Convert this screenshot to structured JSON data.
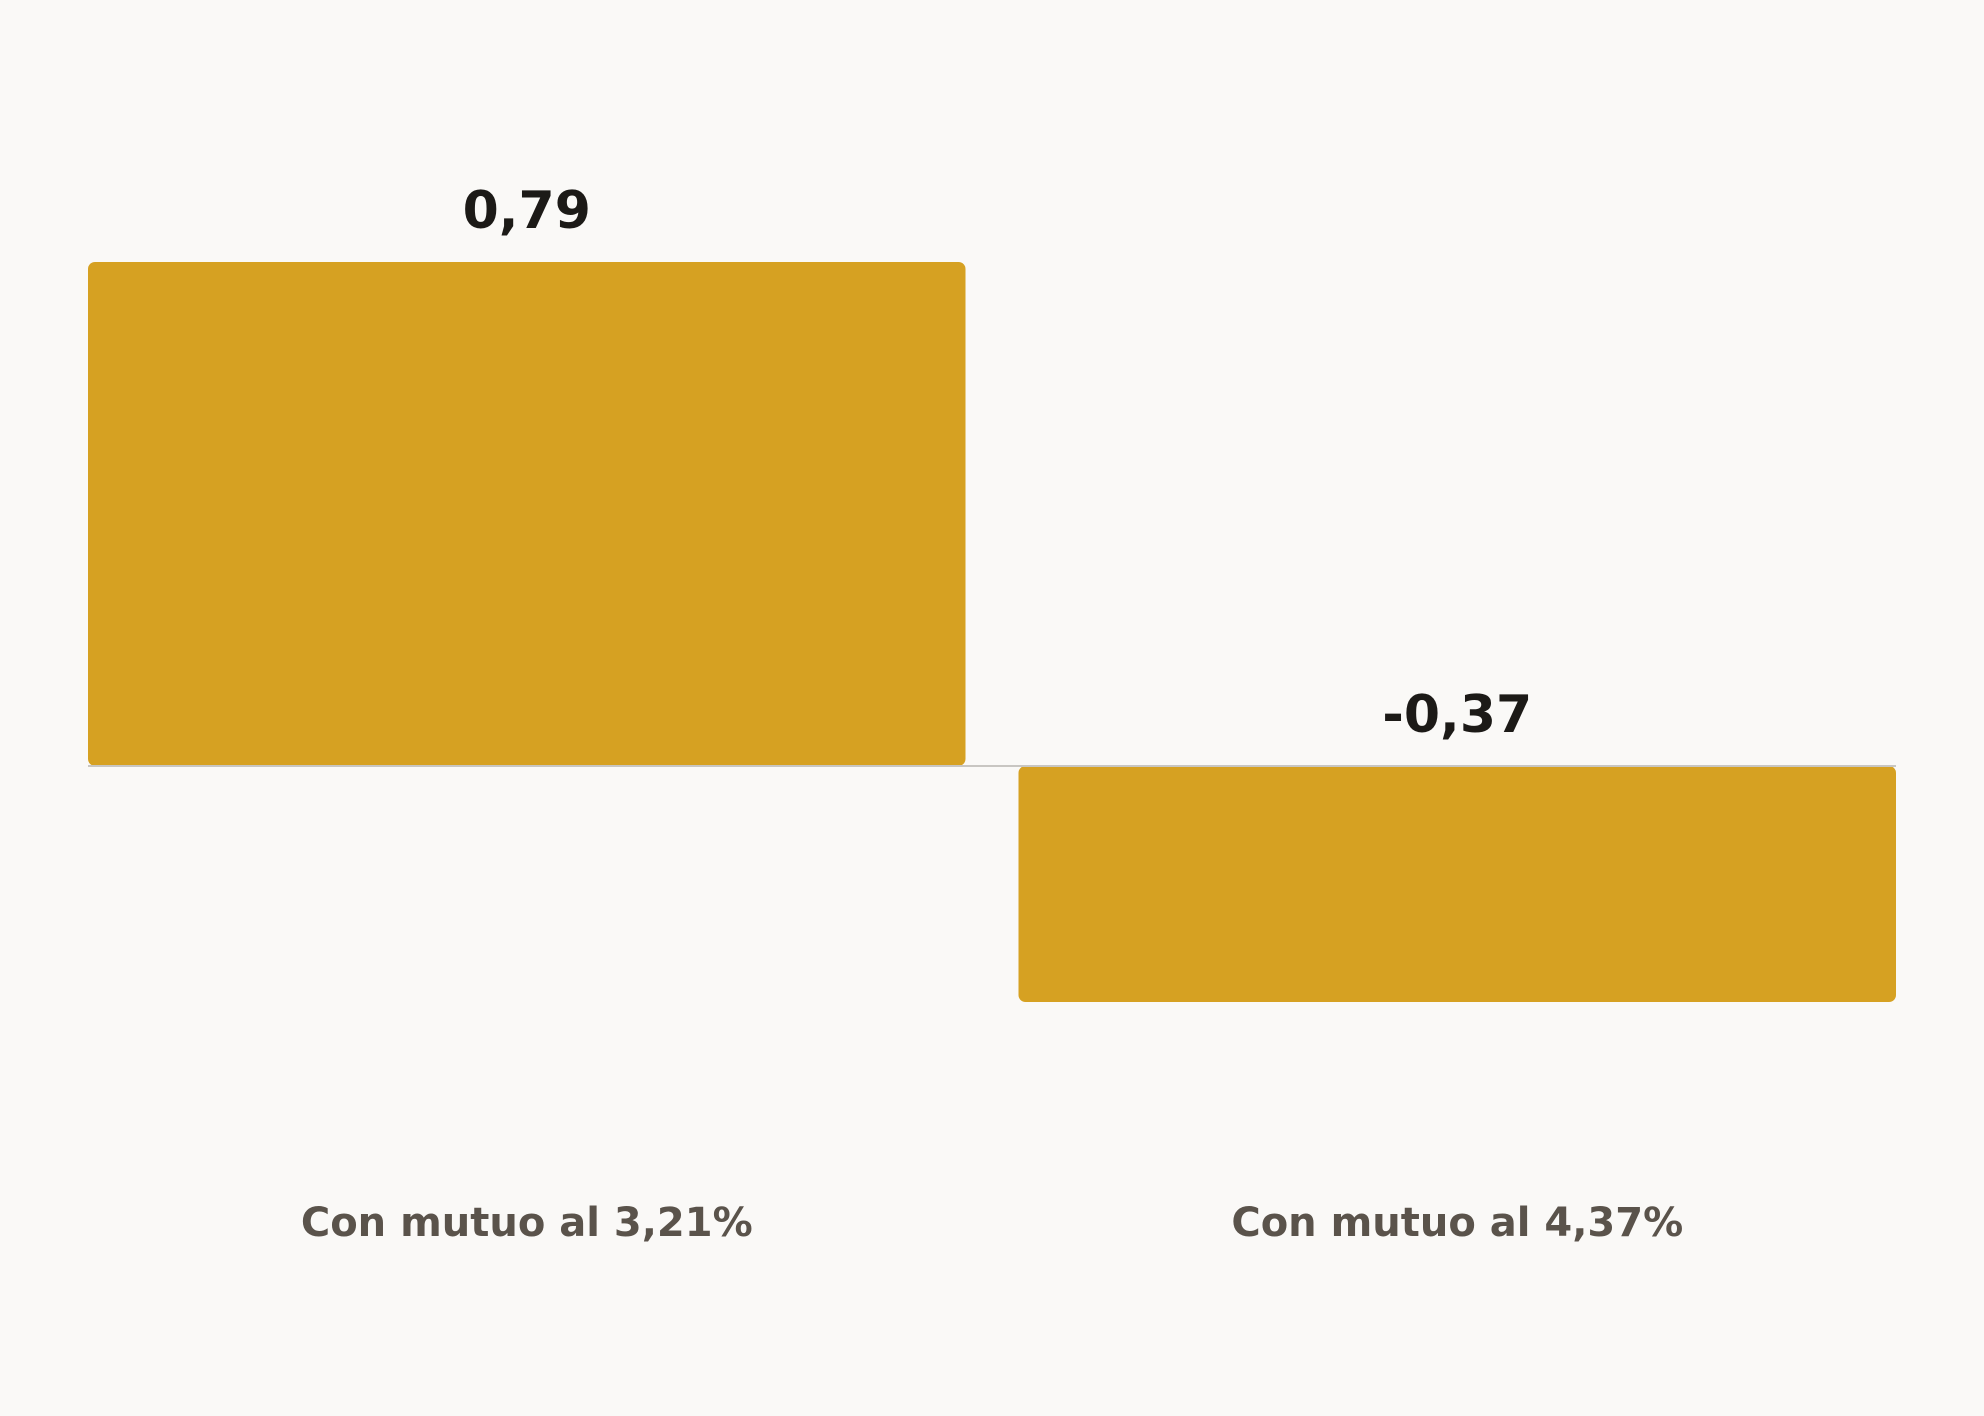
{
  "chart_data": {
    "type": "bar",
    "categories": [
      "Con mutuo al 3,21%",
      "Con mutuo al 4,37%"
    ],
    "values": [
      0.79,
      -0.37
    ],
    "value_labels": [
      "0,79",
      "-0,37"
    ],
    "color": "#d6a122"
  }
}
